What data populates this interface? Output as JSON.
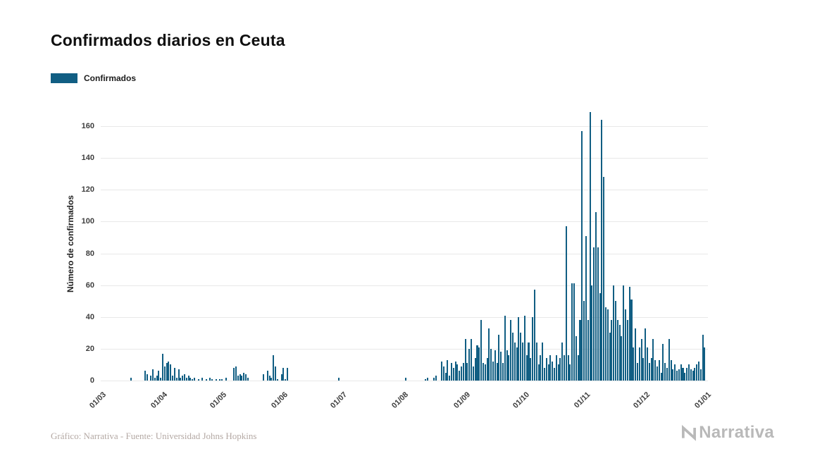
{
  "footer": {
    "credit": "Gráfico: Narrativa - Fuente: Universidad Johns Hopkins",
    "logo_text": "Narrativa"
  },
  "colors": {
    "bar": "#115e83",
    "grid": "#e8e8e8",
    "title_text": "#0f0f0f",
    "tick_text": "#3d3d3d",
    "muted_logo": "#b9b9b9",
    "credit_text": "#b4a9a4"
  },
  "chart_data": {
    "type": "bar",
    "title": "Confirmados diarios en Ceuta",
    "xlabel": "",
    "ylabel": "Número de confirmados",
    "ylim": [
      0,
      172
    ],
    "yticks": [
      0,
      20,
      40,
      60,
      80,
      100,
      120,
      140,
      160
    ],
    "grid": "horizontal",
    "legend_position": "top-left",
    "bar_color": "#115e83",
    "xticks": [
      {
        "label": "01/03",
        "day": 0
      },
      {
        "label": "01/04",
        "day": 31
      },
      {
        "label": "01/05",
        "day": 61
      },
      {
        "label": "01/06",
        "day": 92
      },
      {
        "label": "01/07",
        "day": 122
      },
      {
        "label": "01/08",
        "day": 153
      },
      {
        "label": "01/09",
        "day": 184
      },
      {
        "label": "01/10",
        "day": 214
      },
      {
        "label": "01/11",
        "day": 245
      },
      {
        "label": "01/12",
        "day": 275
      },
      {
        "label": "01/01",
        "day": 306
      }
    ],
    "series": [
      {
        "name": "Confirmados",
        "values": [
          0,
          0,
          0,
          0,
          0,
          0,
          0,
          0,
          0,
          0,
          0,
          0,
          0,
          0,
          0,
          2,
          0,
          0,
          0,
          0,
          0,
          0,
          6,
          4,
          0,
          3,
          7,
          2,
          3,
          6,
          2,
          17,
          9,
          11,
          12,
          10,
          3,
          8,
          2,
          7,
          2,
          3,
          4,
          2,
          3,
          2,
          1,
          2,
          0,
          1,
          0,
          2,
          0,
          1,
          0,
          2,
          1,
          0,
          1,
          0,
          1,
          1,
          0,
          2,
          0,
          0,
          0,
          8,
          9,
          3,
          4,
          3,
          5,
          4,
          2,
          0,
          0,
          0,
          0,
          0,
          0,
          0,
          4,
          0,
          6,
          3,
          2,
          16,
          9,
          1,
          0,
          4,
          8,
          1,
          8,
          0,
          0,
          0,
          0,
          0,
          0,
          0,
          0,
          0,
          0,
          0,
          0,
          0,
          0,
          0,
          0,
          0,
          0,
          0,
          0,
          0,
          0,
          0,
          0,
          0,
          2,
          0,
          0,
          0,
          0,
          0,
          0,
          0,
          0,
          0,
          0,
          0,
          0,
          0,
          0,
          0,
          0,
          0,
          0,
          0,
          0,
          0,
          0,
          0,
          0,
          0,
          0,
          0,
          0,
          0,
          0,
          0,
          0,
          0,
          2,
          0,
          0,
          0,
          0,
          0,
          0,
          0,
          0,
          0,
          1,
          2,
          0,
          0,
          2,
          3,
          0,
          0,
          12,
          9,
          5,
          13,
          3,
          11,
          8,
          12,
          10,
          6,
          9,
          11,
          26,
          11,
          20,
          26,
          9,
          14,
          22,
          21,
          38,
          11,
          10,
          14,
          33,
          20,
          12,
          19,
          11,
          29,
          18,
          11,
          41,
          19,
          16,
          38,
          30,
          24,
          21,
          40,
          30,
          24,
          41,
          16,
          24,
          14,
          40,
          57,
          24,
          10,
          16,
          24,
          8,
          14,
          10,
          16,
          12,
          8,
          16,
          10,
          14,
          24,
          16,
          97,
          16,
          10,
          61,
          61,
          28,
          16,
          38,
          157,
          50,
          91,
          38,
          169,
          60,
          84,
          106,
          84,
          55,
          164,
          128,
          46,
          45,
          30,
          38,
          60,
          50,
          38,
          35,
          28,
          60,
          45,
          38,
          59,
          51,
          21,
          33,
          11,
          21,
          26,
          14,
          33,
          21,
          11,
          14,
          26,
          13,
          9,
          13,
          5,
          23,
          11,
          8,
          26,
          13,
          7,
          10,
          6,
          7,
          10,
          8,
          5,
          8,
          10,
          7,
          6,
          8,
          10,
          12,
          7,
          29,
          21,
          0
        ]
      }
    ]
  }
}
